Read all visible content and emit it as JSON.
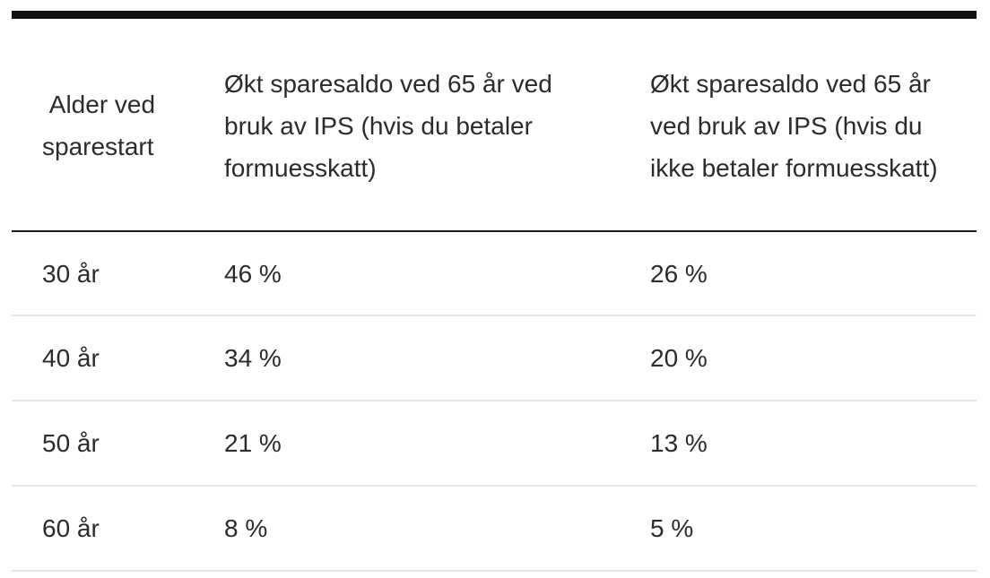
{
  "table": {
    "headers": [
      " Alder ved sparestart",
      "Økt sparesaldo ved 65 år ved bruk av IPS (hvis du betaler formuesskatt)",
      "Økt sparesaldo ved 65 år ved bruk av IPS (hvis du ikke betaler formuesskatt)"
    ],
    "rows": [
      [
        "30 år",
        "46 %",
        "26 %"
      ],
      [
        "40 år",
        "34 %",
        "20 %"
      ],
      [
        "50 år",
        "21 %",
        "13 %"
      ],
      [
        "60 år",
        "8 %",
        "5 %"
      ]
    ]
  },
  "colors": {
    "text": "#2b2b2b",
    "top_rule": "#111111",
    "header_rule": "#1a1a1a",
    "row_divider": "#e6e6e6"
  }
}
